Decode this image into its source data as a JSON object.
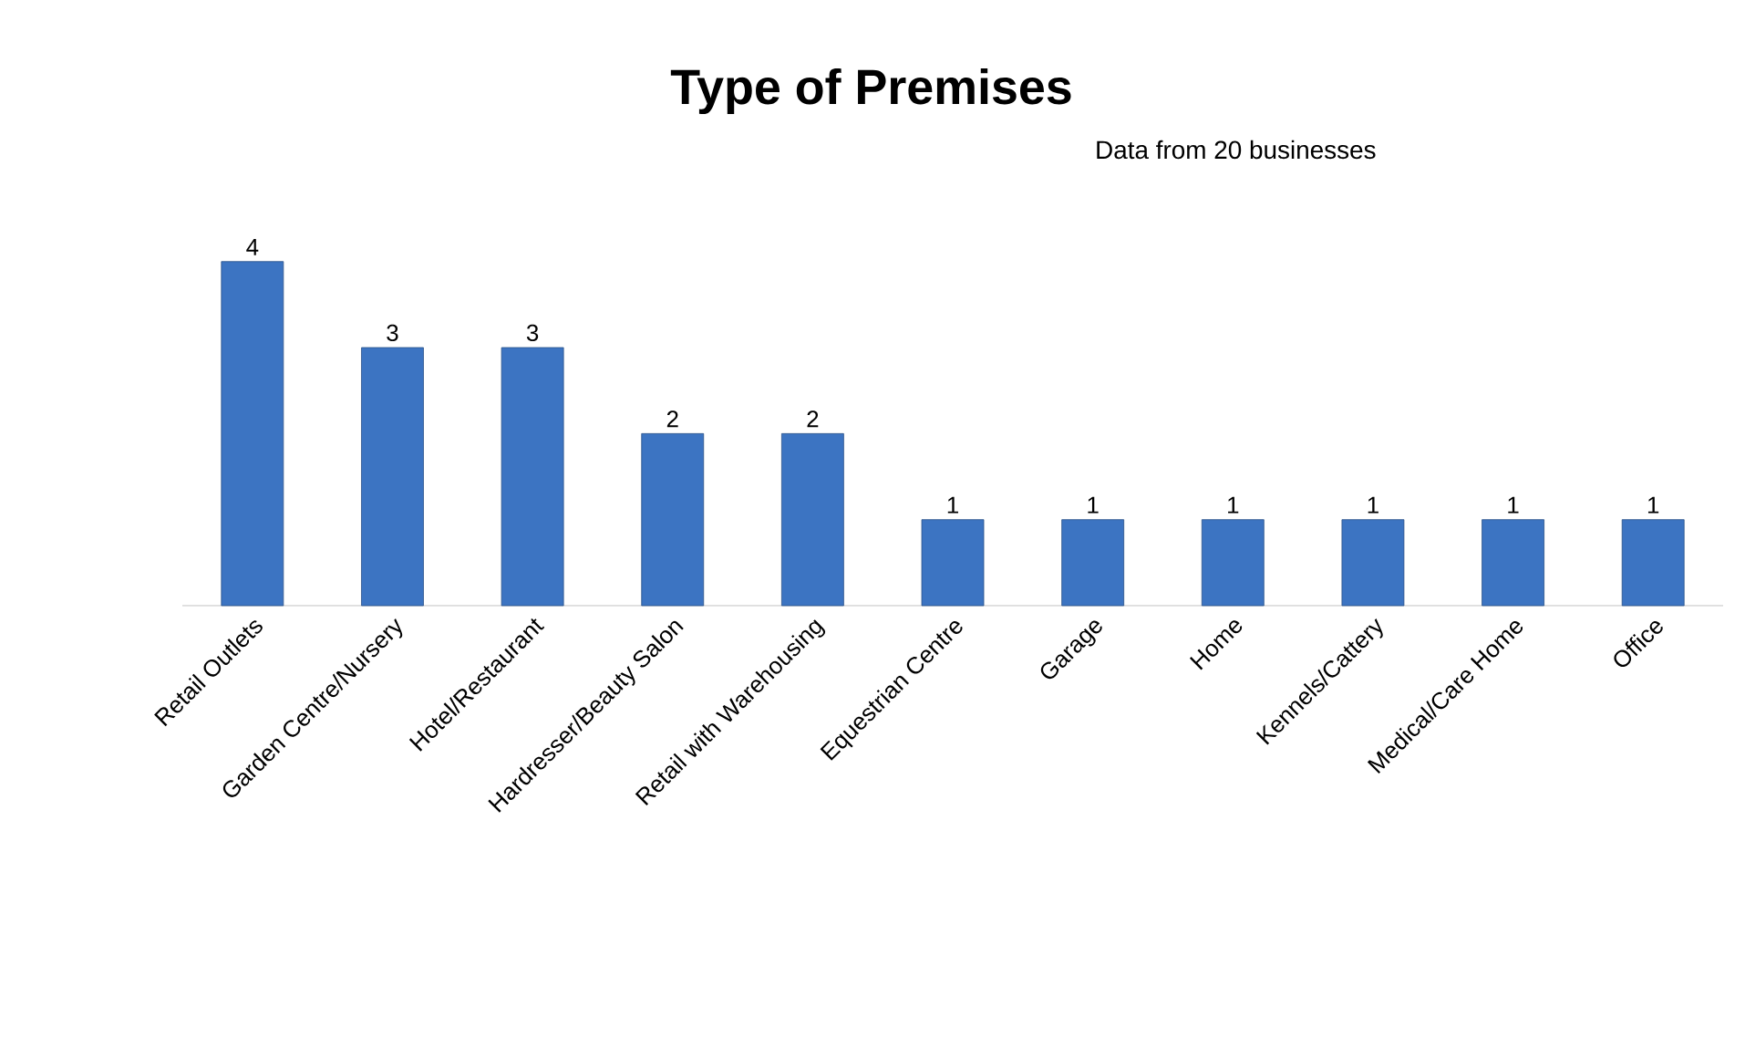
{
  "chart_data": {
    "type": "bar",
    "title": "Type of Premises",
    "categories": [
      "Retail Outlets",
      "Garden Centre/Nursery",
      "Hotel/Restaurant",
      "Hardresser/Beauty Salon",
      "Retail with Warehousing",
      "Equestrian Centre",
      "Garage",
      "Home",
      "Kennels/Cattery",
      "Medical/Care Home",
      "Office"
    ],
    "values": [
      4,
      3,
      3,
      2,
      2,
      1,
      1,
      1,
      1,
      1,
      1
    ],
    "color": "#3c74c2",
    "data_labels": true,
    "annotations": [
      "Data from 20 businesses"
    ]
  }
}
